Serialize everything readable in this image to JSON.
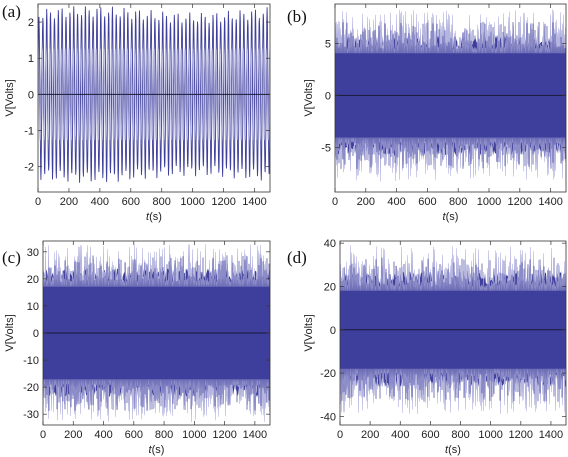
{
  "chart_data": [
    {
      "type": "line",
      "panel_label": "(a)",
      "xlabel_italic": "t",
      "xlabel_unit": "(s)",
      "ylabel": "V[Volts]",
      "xlim": [
        0,
        1500
      ],
      "ylim": [
        -2.7,
        2.5
      ],
      "x_ticks": [
        0,
        200,
        400,
        600,
        800,
        1000,
        1200,
        1400
      ],
      "y_ticks": [
        -2,
        -1,
        0,
        1,
        2
      ],
      "signal": {
        "kind": "regular oscillation",
        "amplitude": 2.3,
        "oscillations_over_range": 60
      },
      "zero_line": true
    },
    {
      "type": "line",
      "panel_label": "(b)",
      "xlabel_italic": "t",
      "xlabel_unit": "(s)",
      "ylabel": "V[Volts]",
      "xlim": [
        0,
        1500
      ],
      "ylim": [
        -9.3,
        8.8
      ],
      "x_ticks": [
        0,
        200,
        400,
        600,
        800,
        1000,
        1200,
        1400
      ],
      "y_ticks": [
        -5,
        0,
        5
      ],
      "signal": {
        "kind": "dense noisy oscillation",
        "envelope_min": 4.5,
        "envelope_max": 8.3
      },
      "zero_line": true
    },
    {
      "type": "line",
      "panel_label": "(c)",
      "xlabel_italic": "t",
      "xlabel_unit": "(s)",
      "ylabel": "V[Volts]",
      "xlim": [
        0,
        1500
      ],
      "ylim": [
        -34,
        34
      ],
      "x_ticks": [
        0,
        200,
        400,
        600,
        800,
        1000,
        1200,
        1400
      ],
      "y_ticks": [
        -30,
        -20,
        -10,
        0,
        10,
        20,
        30
      ],
      "signal": {
        "kind": "dense noisy oscillation",
        "envelope_min": 19,
        "envelope_max": 33
      },
      "zero_line": true
    },
    {
      "type": "line",
      "panel_label": "(d)",
      "xlabel_italic": "t",
      "xlabel_unit": "(s)",
      "ylabel": "V[Volts]",
      "xlim": [
        0,
        1500
      ],
      "ylim": [
        -44,
        41
      ],
      "x_ticks": [
        0,
        200,
        400,
        600,
        800,
        1000,
        1200,
        1400
      ],
      "y_ticks": [
        -40,
        -20,
        0,
        20,
        40
      ],
      "signal": {
        "kind": "dense noisy oscillation",
        "envelope_min": 20,
        "envelope_max": 39
      },
      "zero_line": true
    }
  ],
  "colors": {
    "signal_fill": "#3f3f9c",
    "signal_line": "#b5b5e0",
    "zero_line": "#1a1a3a",
    "frame": "#333333"
  }
}
